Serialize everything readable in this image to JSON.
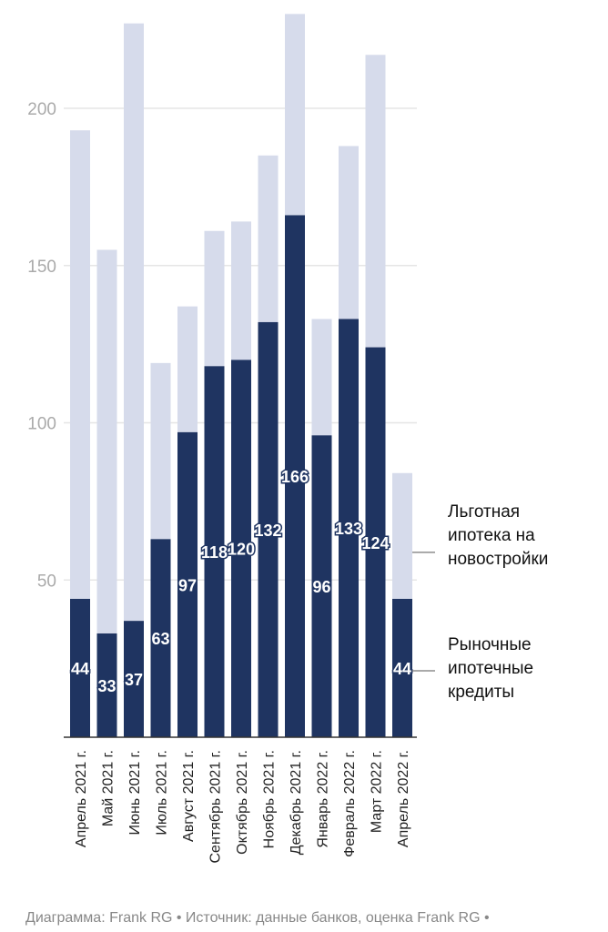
{
  "chart_data": {
    "type": "bar",
    "stacked": true,
    "categories": [
      "Апрель 2021 г.",
      "Май 2021 г.",
      "Июнь 2021 г.",
      "Июль 2021 г.",
      "Август 2021 г.",
      "Сентябрь 2021 г.",
      "Октябрь 2021 г.",
      "Ноябрь 2021 г.",
      "Декабрь 2021 г.",
      "Январь 2022 г.",
      "Февраль 2022 г.",
      "Март 2022 г.",
      "Апрель 2022 г."
    ],
    "series": [
      {
        "name": "Рыночные ипотечные кредиты",
        "color": "#1f3461",
        "values": [
          44,
          33,
          37,
          63,
          97,
          118,
          120,
          132,
          166,
          96,
          133,
          124,
          44
        ]
      },
      {
        "name": "Льготная ипотека на новостройки",
        "color": "#d6dbeb",
        "values": [
          149,
          122,
          190,
          56,
          40,
          43,
          44,
          53,
          64,
          37,
          55,
          93,
          40
        ]
      }
    ],
    "data_labels": [
      "44",
      "33",
      "37",
      "63",
      "97",
      "118",
      "120",
      "132",
      "166",
      "96",
      "133",
      "124",
      "44"
    ],
    "yticks": [
      50,
      100,
      150,
      200
    ],
    "ytick_labels": [
      "50",
      "100",
      "150",
      "200"
    ],
    "ylim": [
      0,
      230
    ],
    "grid": true,
    "legend_position": "right"
  },
  "legend": {
    "mortgage": "Льготная ипотека на новостройки",
    "market": "Рыночные ипотечные кредиты"
  },
  "footer": "Диаграмма: Frank RG • Источник: данные банков, оценка Frank RG •",
  "colors": {
    "market": "#1f3461",
    "mortgage": "#d6dbeb",
    "grid": "#e6e6e6",
    "axis": "#333333"
  }
}
